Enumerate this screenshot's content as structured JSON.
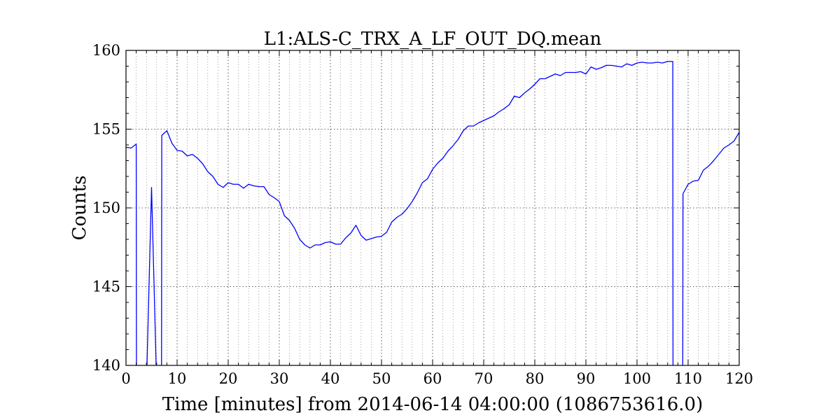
{
  "chart_data": {
    "type": "line",
    "title": "L1:ALS-C_TRX_A_LF_OUT_DQ.mean",
    "xlabel": "Time [minutes] from 2014-06-14 04:00:00 (1086753616.0)",
    "ylabel": "Counts",
    "xlim": [
      0,
      120
    ],
    "ylim": [
      140,
      160
    ],
    "xticks": [
      0,
      10,
      20,
      30,
      40,
      50,
      60,
      70,
      80,
      90,
      100,
      110,
      120
    ],
    "yticks": [
      140,
      145,
      150,
      155,
      160
    ],
    "grid": true,
    "series": [
      {
        "color": "#0000ff",
        "x": [
          0,
          1,
          2,
          2.05,
          3.95,
          4,
          5,
          6,
          6.95,
          7,
          8,
          9,
          10,
          11,
          12,
          13,
          14,
          15,
          16,
          17,
          18,
          19,
          20,
          21,
          22,
          23,
          24,
          25,
          26,
          27,
          28,
          29,
          30,
          31,
          32,
          33,
          34,
          35,
          36,
          37,
          38,
          39,
          40,
          41,
          42,
          43,
          44,
          45,
          46,
          47,
          48,
          49,
          50,
          51,
          52,
          53,
          54,
          55,
          56,
          57,
          58,
          59,
          60,
          61,
          62,
          63,
          64,
          65,
          66,
          67,
          68,
          69,
          70,
          71,
          72,
          73,
          74,
          75,
          76,
          77,
          78,
          79,
          80,
          81,
          82,
          83,
          84,
          85,
          86,
          87,
          88,
          89,
          90,
          91,
          92,
          93,
          94,
          95,
          96,
          97,
          98,
          99,
          100,
          101,
          102,
          103,
          104,
          105,
          106,
          107,
          107.05,
          108.95,
          109,
          110,
          111,
          112,
          113,
          114,
          115,
          116,
          117,
          118,
          119,
          120
        ],
        "y": [
          153.85,
          153.8,
          154.05,
          140,
          140,
          140,
          151.3,
          140,
          140,
          154.6,
          154.9,
          154.1,
          153.65,
          153.6,
          153.3,
          153.4,
          153.15,
          152.8,
          152.3,
          152,
          151.5,
          151.3,
          151.6,
          151.5,
          151.5,
          151.25,
          151.5,
          151.4,
          151.35,
          151.35,
          150.85,
          150.65,
          150.4,
          149.5,
          149.2,
          148.7,
          148,
          147.65,
          147.45,
          147.65,
          147.65,
          147.8,
          147.85,
          147.7,
          147.7,
          148.1,
          148.4,
          148.9,
          148.25,
          147.95,
          148.05,
          148.15,
          148.2,
          148.45,
          149.1,
          149.4,
          149.6,
          149.95,
          150.4,
          150.95,
          151.6,
          151.85,
          152.45,
          152.85,
          153.15,
          153.6,
          153.95,
          154.35,
          154.9,
          155.2,
          155.2,
          155.4,
          155.55,
          155.7,
          155.85,
          156.1,
          156.3,
          156.55,
          157.1,
          157,
          157.3,
          157.55,
          157.85,
          158.2,
          158.2,
          158.35,
          158.5,
          158.4,
          158.6,
          158.6,
          158.6,
          158.65,
          158.5,
          158.95,
          158.8,
          158.9,
          159.05,
          159.05,
          159,
          158.95,
          159.15,
          159.05,
          159.2,
          159.25,
          159.2,
          159.2,
          159.25,
          159.2,
          159.3,
          159.3,
          140,
          140,
          150.9,
          151.5,
          151.7,
          151.75,
          152.4,
          152.65,
          153,
          153.4,
          153.8,
          154,
          154.25,
          154.8
        ]
      }
    ]
  }
}
